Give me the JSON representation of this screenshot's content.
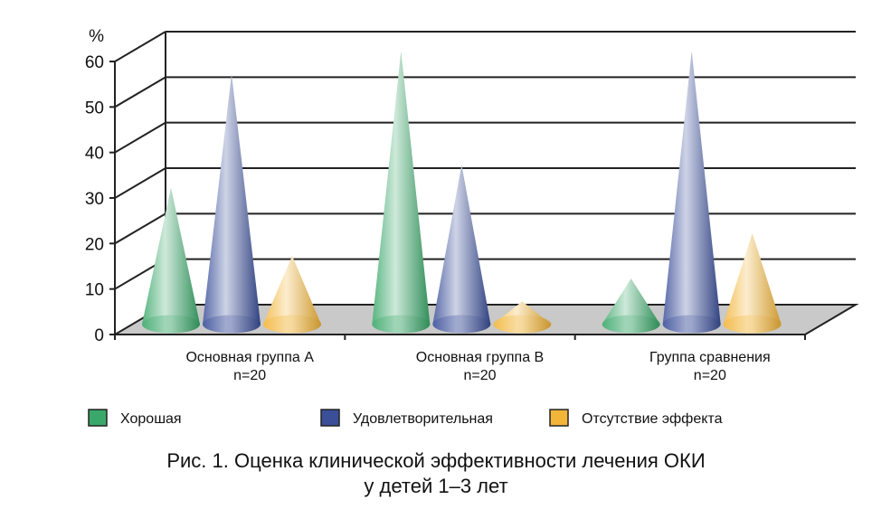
{
  "chart_data": {
    "type": "bar",
    "style": "3d-cone",
    "ylabel": "%",
    "ylim": [
      0,
      60
    ],
    "yticks": [
      "0",
      "10",
      "20",
      "30",
      "40",
      "50",
      "60"
    ],
    "grid": true,
    "legend_position": "bottom",
    "categories": [
      [
        "Основная группа А",
        "n=20"
      ],
      [
        "Основная группа В",
        "n=20"
      ],
      [
        "Группа сравнения",
        "n=20"
      ]
    ],
    "series": [
      {
        "name": "Хорошая",
        "color": "#3aa86a",
        "values": [
          30,
          60,
          10
        ]
      },
      {
        "name": "Удовлетворительная",
        "color": "#3b4f99",
        "values": [
          55,
          35,
          60
        ]
      },
      {
        "name": "Отсутствие эффекта",
        "color": "#f2b53a",
        "values": [
          15,
          5,
          20
        ]
      }
    ]
  },
  "caption": {
    "line1": "Рис. 1. Оценка клинической эффективности лечения ОКИ",
    "line2": "у детей 1–3 лет"
  }
}
